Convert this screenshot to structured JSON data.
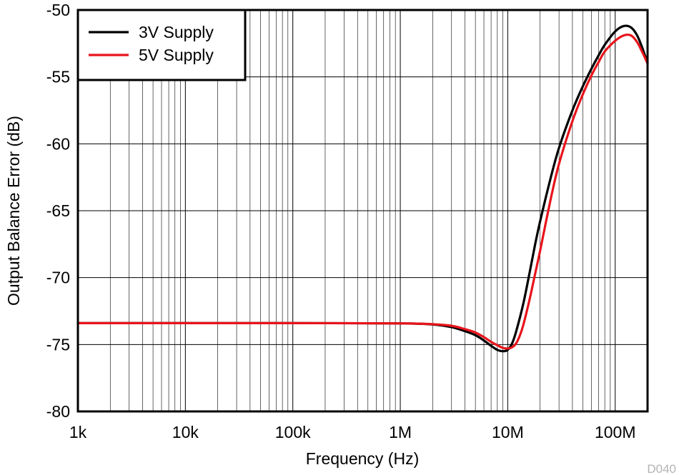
{
  "figure_id": "D040",
  "chart_data": {
    "type": "line",
    "xlabel": "Frequency (Hz)",
    "ylabel": "Output Balance Error (dB)",
    "x_scale": "log",
    "xlim": [
      1000,
      200000000
    ],
    "ylim": [
      -80,
      -50
    ],
    "x_ticks": [
      {
        "value": 1000,
        "label": "1k"
      },
      {
        "value": 10000,
        "label": "10k"
      },
      {
        "value": 100000,
        "label": "100k"
      },
      {
        "value": 1000000,
        "label": "1M"
      },
      {
        "value": 10000000,
        "label": "10M"
      },
      {
        "value": 100000000,
        "label": "100M"
      }
    ],
    "y_ticks": [
      -50,
      -55,
      -60,
      -65,
      -70,
      -75,
      -80
    ],
    "y_tick_labels": [
      "-50",
      "-55",
      "-60",
      "-65",
      "-70",
      "-75",
      "-80"
    ],
    "grid": true,
    "legend": {
      "position": "top-left"
    },
    "series": [
      {
        "name": "3V Supply",
        "color": "#000000",
        "x": [
          1000,
          10000,
          100000,
          1000000,
          2000000,
          3000000,
          4000000,
          5000000,
          6000000,
          7000000,
          8000000,
          9000000,
          10000000,
          11000000,
          12000000,
          14000000,
          16000000,
          18000000,
          20000000,
          25000000,
          30000000,
          40000000,
          50000000,
          60000000,
          70000000,
          80000000,
          100000000,
          120000000,
          140000000,
          160000000,
          180000000,
          200000000
        ],
        "y": [
          -73.4,
          -73.4,
          -73.4,
          -73.42,
          -73.5,
          -73.7,
          -74.0,
          -74.3,
          -74.7,
          -75.1,
          -75.4,
          -75.5,
          -75.4,
          -74.9,
          -74.0,
          -71.9,
          -69.6,
          -67.5,
          -65.8,
          -62.6,
          -60.3,
          -57.5,
          -55.7,
          -54.4,
          -53.4,
          -52.6,
          -51.6,
          -51.2,
          -51.3,
          -51.9,
          -52.9,
          -54.0
        ]
      },
      {
        "name": "5V Supply",
        "color": "#e8141b",
        "x": [
          1000,
          10000,
          100000,
          1000000,
          2000000,
          3000000,
          4000000,
          5000000,
          6000000,
          7000000,
          8000000,
          9000000,
          10000000,
          11000000,
          12000000,
          13000000,
          14000000,
          16000000,
          18000000,
          20000000,
          25000000,
          30000000,
          40000000,
          50000000,
          60000000,
          70000000,
          80000000,
          100000000,
          120000000,
          140000000,
          160000000,
          180000000,
          200000000
        ],
        "y": [
          -73.4,
          -73.4,
          -73.4,
          -73.42,
          -73.48,
          -73.6,
          -73.85,
          -74.1,
          -74.45,
          -74.8,
          -75.05,
          -75.25,
          -75.3,
          -75.2,
          -74.9,
          -74.3,
          -73.5,
          -71.6,
          -69.7,
          -68.0,
          -64.2,
          -61.5,
          -58.3,
          -56.3,
          -54.9,
          -53.9,
          -53.1,
          -52.3,
          -51.9,
          -51.9,
          -52.4,
          -53.2,
          -54.0
        ]
      }
    ]
  }
}
